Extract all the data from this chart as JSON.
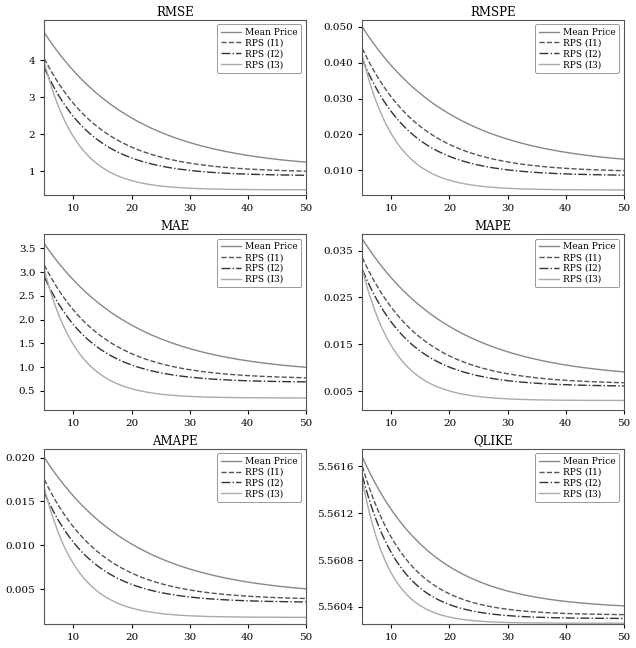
{
  "titles": [
    "RMSE",
    "RMSPE",
    "MAE",
    "MAPE",
    "AMAPE",
    "QLIKE"
  ],
  "xlim": [
    5,
    50
  ],
  "x_ticks": [
    10,
    20,
    30,
    40,
    50
  ],
  "line_styles": [
    {
      "linestyle": "-",
      "color": "#888888",
      "linewidth": 1.0,
      "label": "Mean Price"
    },
    {
      "linestyle": "--",
      "color": "#555555",
      "linewidth": 1.0,
      "label": "RPS (I1)"
    },
    {
      "linestyle": "-.",
      "color": "#333333",
      "linewidth": 1.0,
      "label": "RPS (I2)"
    },
    {
      "linestyle": "-",
      "color": "#aaaaaa",
      "linewidth": 1.0,
      "label": "RPS (I3)"
    }
  ],
  "panels": {
    "RMSE": {
      "ylim": [
        0.35,
        5.1
      ],
      "yticks": [
        1,
        2,
        3,
        4
      ],
      "lines": {
        "starts": [
          4.75,
          4.05,
          3.8,
          3.95
        ],
        "ends": [
          1.05,
          0.97,
          0.88,
          0.5
        ],
        "rates": [
          0.065,
          0.1,
          0.12,
          0.175
        ]
      }
    },
    "RMSPE": {
      "ylim": [
        0.003,
        0.052
      ],
      "yticks": [
        0.01,
        0.02,
        0.03,
        0.04,
        0.05
      ],
      "lines": {
        "starts": [
          0.05,
          0.044,
          0.041,
          0.042
        ],
        "ends": [
          0.011,
          0.0095,
          0.0085,
          0.0045
        ],
        "rates": [
          0.065,
          0.1,
          0.12,
          0.175
        ]
      }
    },
    "MAE": {
      "ylim": [
        0.1,
        3.8
      ],
      "yticks": [
        0.5,
        1.0,
        1.5,
        2.0,
        2.5,
        3.0,
        3.5
      ],
      "lines": {
        "starts": [
          3.6,
          3.15,
          2.9,
          3.05
        ],
        "ends": [
          0.85,
          0.75,
          0.68,
          0.35
        ],
        "rates": [
          0.065,
          0.1,
          0.12,
          0.175
        ]
      }
    },
    "MAPE": {
      "ylim": [
        0.001,
        0.0385
      ],
      "yticks": [
        0.005,
        0.015,
        0.025,
        0.035
      ],
      "lines": {
        "starts": [
          0.0375,
          0.0335,
          0.031,
          0.031
        ],
        "ends": [
          0.0075,
          0.0065,
          0.006,
          0.003
        ],
        "rates": [
          0.065,
          0.1,
          0.12,
          0.175
        ]
      }
    },
    "AMAPE": {
      "ylim": [
        0.001,
        0.021
      ],
      "yticks": [
        0.005,
        0.01,
        0.015,
        0.02
      ],
      "lines": {
        "starts": [
          0.02,
          0.0175,
          0.016,
          0.0165
        ],
        "ends": [
          0.0042,
          0.0038,
          0.0035,
          0.0018
        ],
        "rates": [
          0.065,
          0.1,
          0.12,
          0.175
        ]
      }
    },
    "QLIKE": {
      "ylim": [
        5.56025,
        5.56175
      ],
      "yticks": [
        5.5604,
        5.5608,
        5.5612,
        5.5616
      ],
      "lines": {
        "starts": [
          5.56168,
          5.5616,
          5.56152,
          5.56148
        ],
        "ends": [
          5.56038,
          5.56033,
          5.5603,
          5.56026
        ],
        "rates": [
          0.085,
          0.13,
          0.155,
          0.21
        ]
      }
    }
  }
}
